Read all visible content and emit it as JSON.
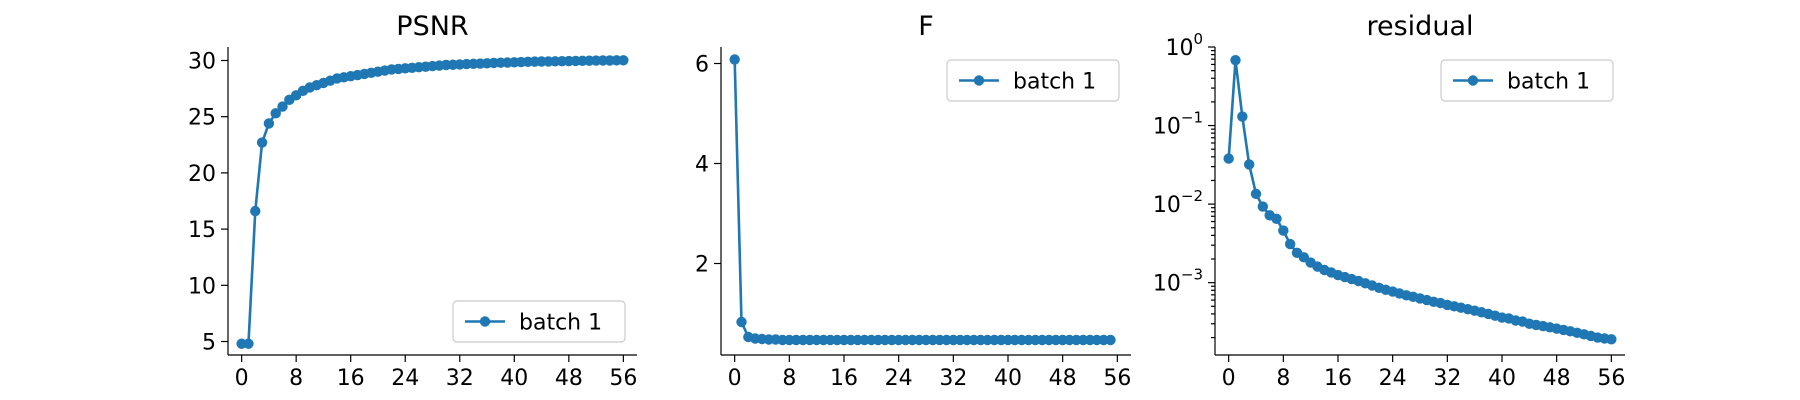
{
  "chart_data": [
    {
      "type": "line",
      "title": "PSNR",
      "xlabel": "",
      "ylabel": "",
      "xlim": [
        -2,
        58
      ],
      "ylim": [
        3.8,
        31.2
      ],
      "yscale": "linear",
      "xticks": [
        0,
        8,
        16,
        24,
        32,
        40,
        48,
        56
      ],
      "yticks": [
        5,
        10,
        15,
        20,
        25,
        30
      ],
      "ytick_labels": [
        "5",
        "10",
        "15",
        "20",
        "25",
        "30"
      ],
      "legend_position": "lower-right",
      "series": [
        {
          "name": "batch 1",
          "color": "#1f77b4",
          "x": [
            0,
            1,
            2,
            3,
            4,
            5,
            6,
            7,
            8,
            9,
            10,
            11,
            12,
            13,
            14,
            15,
            16,
            17,
            18,
            19,
            20,
            21,
            22,
            23,
            24,
            25,
            26,
            27,
            28,
            29,
            30,
            31,
            32,
            33,
            34,
            35,
            36,
            37,
            38,
            39,
            40,
            41,
            42,
            43,
            44,
            45,
            46,
            47,
            48,
            49,
            50,
            51,
            52,
            53,
            54,
            55,
            56
          ],
          "y": [
            4.8,
            4.8,
            16.6,
            22.7,
            24.4,
            25.3,
            25.9,
            26.5,
            26.9,
            27.3,
            27.6,
            27.8,
            28.0,
            28.2,
            28.4,
            28.5,
            28.6,
            28.7,
            28.8,
            28.9,
            29.0,
            29.1,
            29.2,
            29.25,
            29.3,
            29.35,
            29.4,
            29.45,
            29.5,
            29.55,
            29.6,
            29.62,
            29.65,
            29.68,
            29.7,
            29.73,
            29.75,
            29.78,
            29.8,
            29.82,
            29.84,
            29.86,
            29.88,
            29.9,
            29.91,
            29.92,
            29.93,
            29.94,
            29.95,
            29.96,
            29.97,
            29.98,
            29.99,
            30.0,
            30.0,
            30.01,
            30.02
          ]
        }
      ]
    },
    {
      "type": "line",
      "title": "F",
      "xlabel": "",
      "ylabel": "",
      "xlim": [
        -2,
        58
      ],
      "ylim": [
        0.17,
        6.33
      ],
      "yscale": "linear",
      "xticks": [
        0,
        8,
        16,
        24,
        32,
        40,
        48,
        56
      ],
      "yticks": [
        2,
        4,
        6
      ],
      "ytick_labels": [
        "2",
        "4",
        "6"
      ],
      "legend_position": "upper-right",
      "series": [
        {
          "name": "batch 1",
          "color": "#1f77b4",
          "x": [
            0,
            1,
            2,
            3,
            4,
            5,
            6,
            7,
            8,
            9,
            10,
            11,
            12,
            13,
            14,
            15,
            16,
            17,
            18,
            19,
            20,
            21,
            22,
            23,
            24,
            25,
            26,
            27,
            28,
            29,
            30,
            31,
            32,
            33,
            34,
            35,
            36,
            37,
            38,
            39,
            40,
            41,
            42,
            43,
            44,
            45,
            46,
            47,
            48,
            49,
            50,
            51,
            52,
            53,
            54,
            55
          ],
          "y": [
            6.08,
            0.83,
            0.53,
            0.5,
            0.49,
            0.48,
            0.48,
            0.47,
            0.47,
            0.47,
            0.47,
            0.47,
            0.47,
            0.47,
            0.47,
            0.47,
            0.47,
            0.47,
            0.47,
            0.47,
            0.47,
            0.47,
            0.47,
            0.47,
            0.47,
            0.47,
            0.47,
            0.47,
            0.47,
            0.47,
            0.47,
            0.47,
            0.47,
            0.47,
            0.47,
            0.47,
            0.47,
            0.47,
            0.47,
            0.47,
            0.47,
            0.47,
            0.47,
            0.47,
            0.47,
            0.47,
            0.47,
            0.47,
            0.47,
            0.47,
            0.47,
            0.47,
            0.47,
            0.47,
            0.47,
            0.47
          ]
        }
      ]
    },
    {
      "type": "line",
      "title": "residual",
      "xlabel": "",
      "ylabel": "",
      "xlim": [
        -2,
        58
      ],
      "ylim": [
        0.00012,
        1.0
      ],
      "yscale": "log",
      "xticks": [
        0,
        8,
        16,
        24,
        32,
        40,
        48,
        56
      ],
      "yticks": [
        0.001,
        0.01,
        0.1,
        1
      ],
      "ytick_labels": [
        "10",
        "10",
        "10",
        "10"
      ],
      "ytick_exponents": [
        "−3",
        "−2",
        "−1",
        "0"
      ],
      "legend_position": "upper-right",
      "series": [
        {
          "name": "batch 1",
          "color": "#1f77b4",
          "x": [
            0,
            1,
            2,
            3,
            4,
            5,
            6,
            7,
            8,
            9,
            10,
            11,
            12,
            13,
            14,
            15,
            16,
            17,
            18,
            19,
            20,
            21,
            22,
            23,
            24,
            25,
            26,
            27,
            28,
            29,
            30,
            31,
            32,
            33,
            34,
            35,
            36,
            37,
            38,
            39,
            40,
            41,
            42,
            43,
            44,
            45,
            46,
            47,
            48,
            49,
            50,
            51,
            52,
            53,
            54,
            55,
            56
          ],
          "y": [
            0.038,
            0.68,
            0.13,
            0.032,
            0.0135,
            0.0093,
            0.0072,
            0.0065,
            0.0046,
            0.0031,
            0.0024,
            0.0021,
            0.0018,
            0.0016,
            0.00145,
            0.00135,
            0.00125,
            0.00118,
            0.00111,
            0.00105,
            0.00098,
            0.00092,
            0.00086,
            0.00081,
            0.00077,
            0.00073,
            0.00069,
            0.00066,
            0.00063,
            0.0006,
            0.00057,
            0.00055,
            0.00052,
            0.0005,
            0.00048,
            0.00046,
            0.00044,
            0.00042,
            0.0004,
            0.00038,
            0.00036,
            0.00035,
            0.00033,
            0.00032,
            0.0003,
            0.00029,
            0.00028,
            0.00027,
            0.00026,
            0.00025,
            0.00024,
            0.00023,
            0.00022,
            0.00021,
            0.0002,
            0.000195,
            0.00019
          ]
        }
      ]
    }
  ]
}
